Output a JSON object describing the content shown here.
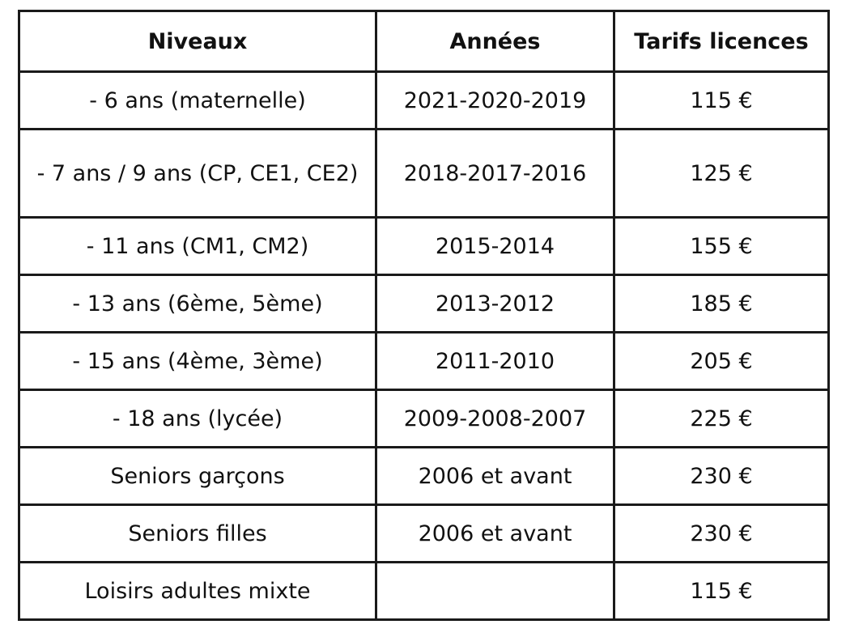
{
  "table": {
    "headers": [
      "Niveaux",
      "Années",
      "Tarifs licences"
    ],
    "rows": [
      [
        "- 6 ans (maternelle)",
        "2021-2020-2019",
        "115 €"
      ],
      [
        "- 7 ans / 9 ans (CP, CE1, CE2)",
        "2018-2017-2016",
        "125 €"
      ],
      [
        "- 11 ans (CM1, CM2)",
        "2015-2014",
        "155 €"
      ],
      [
        "- 13 ans (6ème, 5ème)",
        "2013-2012",
        "185 €"
      ],
      [
        "- 15 ans (4ème, 3ème)",
        "2011-2010",
        "205 €"
      ],
      [
        "- 18 ans (lycée)",
        "2009-2008-2007",
        "225 €"
      ],
      [
        "Seniors garçons",
        "2006 et avant",
        "230 €"
      ],
      [
        "Seniors filles",
        "2006 et avant",
        "230 €"
      ],
      [
        "Loisirs adultes mixte",
        "",
        "115 €"
      ]
    ]
  }
}
